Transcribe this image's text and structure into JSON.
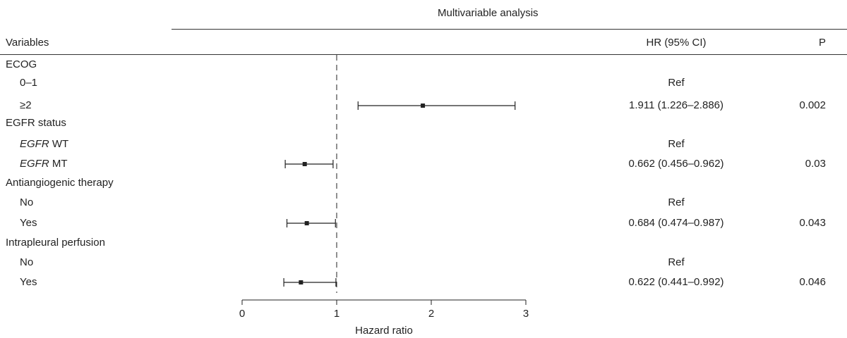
{
  "header": {
    "analysis_title": "Multivariable analysis",
    "col_variables": "Variables",
    "col_hr": "HR (95% CI)",
    "col_p": "P"
  },
  "rows": [
    {
      "kind": "group",
      "label": "ECOG"
    },
    {
      "kind": "level",
      "label": "0–1",
      "hr_text": "Ref",
      "p": ""
    },
    {
      "kind": "level",
      "label": "≥2",
      "hr_text": "1.911 (1.226–2.886)",
      "p": "0.002"
    },
    {
      "kind": "group",
      "label": "EGFR status"
    },
    {
      "kind": "level",
      "label_italic": "EGFR",
      "label_rest": " WT",
      "hr_text": "Ref",
      "p": ""
    },
    {
      "kind": "level",
      "label_italic": "EGFR",
      "label_rest": " MT",
      "hr_text": "0.662 (0.456–0.962)",
      "p": "0.03"
    },
    {
      "kind": "group",
      "label": "Antiangiogenic therapy"
    },
    {
      "kind": "level",
      "label": "No",
      "hr_text": "Ref",
      "p": ""
    },
    {
      "kind": "level",
      "label": "Yes",
      "hr_text": "0.684 (0.474–0.987)",
      "p": "0.043"
    },
    {
      "kind": "group",
      "label": "Intrapleural perfusion"
    },
    {
      "kind": "level",
      "label": "No",
      "hr_text": "Ref",
      "p": ""
    },
    {
      "kind": "level",
      "label": "Yes",
      "hr_text": "0.622 (0.441–0.992)",
      "p": "0.046"
    }
  ],
  "chart_data": {
    "type": "forest",
    "title": "Multivariable analysis",
    "xlabel": "Hazard ratio",
    "xlim": [
      0,
      3
    ],
    "xticks": [
      "0",
      "1",
      "2",
      "3"
    ],
    "reference_line": 1,
    "points": [
      {
        "row": 2,
        "label": "≥2",
        "hr": 1.911,
        "lo": 1.226,
        "hi": 2.886
      },
      {
        "row": 5,
        "label": "EGFR MT",
        "hr": 0.662,
        "lo": 0.456,
        "hi": 0.962
      },
      {
        "row": 8,
        "label": "Antiangiogenic therapy Yes",
        "hr": 0.684,
        "lo": 0.474,
        "hi": 0.987
      },
      {
        "row": 11,
        "label": "Intrapleural perfusion Yes",
        "hr": 0.622,
        "lo": 0.441,
        "hi": 0.992
      }
    ],
    "colors": {
      "ink": "#222222"
    }
  }
}
